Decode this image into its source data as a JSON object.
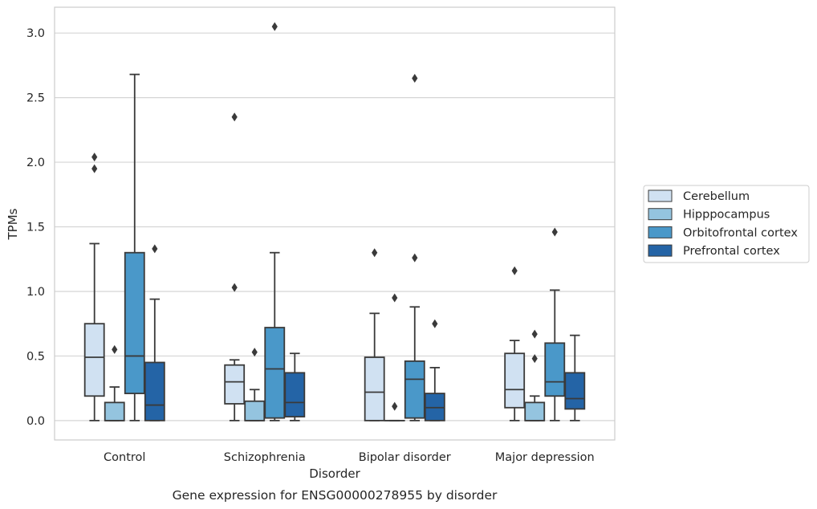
{
  "chart_data": {
    "type": "boxplot",
    "caption": "Gene expression for ENSG00000278955 by disorder",
    "xlabel": "Disorder",
    "ylabel": "TPMs",
    "ylim": [
      -0.15,
      3.2
    ],
    "yticks": [
      0.0,
      0.5,
      1.0,
      1.5,
      2.0,
      2.5,
      3.0
    ],
    "ytick_labels": [
      "0.0",
      "0.5",
      "1.0",
      "1.5",
      "2.0",
      "2.5",
      "3.0"
    ],
    "grid": "horizontal",
    "legend_position": "right",
    "categories": [
      "Control",
      "Schizophrenia",
      "Bipolar disorder",
      "Major depression"
    ],
    "series": [
      {
        "name": "Cerebellum",
        "color": "#d0e1f2",
        "boxes": [
          {
            "whislo": 0.0,
            "q1": 0.19,
            "med": 0.49,
            "q3": 0.75,
            "whishi": 1.37,
            "fliers": [
              1.95,
              2.04
            ]
          },
          {
            "whislo": 0.0,
            "q1": 0.13,
            "med": 0.3,
            "q3": 0.43,
            "whishi": 0.47,
            "fliers": [
              1.03,
              2.35
            ]
          },
          {
            "whislo": 0.0,
            "q1": 0.0,
            "med": 0.22,
            "q3": 0.49,
            "whishi": 0.83,
            "fliers": [
              1.3
            ]
          },
          {
            "whislo": 0.0,
            "q1": 0.1,
            "med": 0.24,
            "q3": 0.52,
            "whishi": 0.62,
            "fliers": [
              1.16
            ]
          }
        ]
      },
      {
        "name": "Hipppocampus",
        "color": "#94c4df",
        "boxes": [
          {
            "whislo": 0.0,
            "q1": 0.0,
            "med": 0.0,
            "q3": 0.14,
            "whishi": 0.26,
            "fliers": [
              0.55
            ]
          },
          {
            "whislo": 0.0,
            "q1": 0.0,
            "med": 0.0,
            "q3": 0.15,
            "whishi": 0.24,
            "fliers": [
              0.53
            ]
          },
          {
            "whislo": 0.0,
            "q1": 0.0,
            "med": 0.0,
            "q3": 0.0,
            "whishi": 0.0,
            "fliers": [
              0.11,
              0.95
            ]
          },
          {
            "whislo": 0.0,
            "q1": 0.0,
            "med": 0.0,
            "q3": 0.14,
            "whishi": 0.19,
            "fliers": [
              0.48,
              0.67
            ]
          }
        ]
      },
      {
        "name": "Orbitofrontal cortex",
        "color": "#4a98c9",
        "boxes": [
          {
            "whislo": 0.0,
            "q1": 0.21,
            "med": 0.5,
            "q3": 1.3,
            "whishi": 2.68,
            "fliers": []
          },
          {
            "whislo": 0.0,
            "q1": 0.02,
            "med": 0.4,
            "q3": 0.72,
            "whishi": 1.3,
            "fliers": [
              3.05
            ]
          },
          {
            "whislo": 0.0,
            "q1": 0.02,
            "med": 0.32,
            "q3": 0.46,
            "whishi": 0.88,
            "fliers": [
              1.26,
              2.65
            ]
          },
          {
            "whislo": 0.0,
            "q1": 0.19,
            "med": 0.3,
            "q3": 0.6,
            "whishi": 1.01,
            "fliers": [
              1.46
            ]
          }
        ]
      },
      {
        "name": "Prefrontal cortex",
        "color": "#2464a6",
        "boxes": [
          {
            "whislo": 0.0,
            "q1": 0.0,
            "med": 0.12,
            "q3": 0.45,
            "whishi": 0.94,
            "fliers": [
              1.33
            ]
          },
          {
            "whislo": 0.0,
            "q1": 0.03,
            "med": 0.14,
            "q3": 0.37,
            "whishi": 0.52,
            "fliers": []
          },
          {
            "whislo": 0.0,
            "q1": 0.0,
            "med": 0.1,
            "q3": 0.21,
            "whishi": 0.41,
            "fliers": [
              0.75
            ]
          },
          {
            "whislo": 0.0,
            "q1": 0.09,
            "med": 0.17,
            "q3": 0.37,
            "whishi": 0.66,
            "fliers": []
          }
        ]
      }
    ]
  }
}
